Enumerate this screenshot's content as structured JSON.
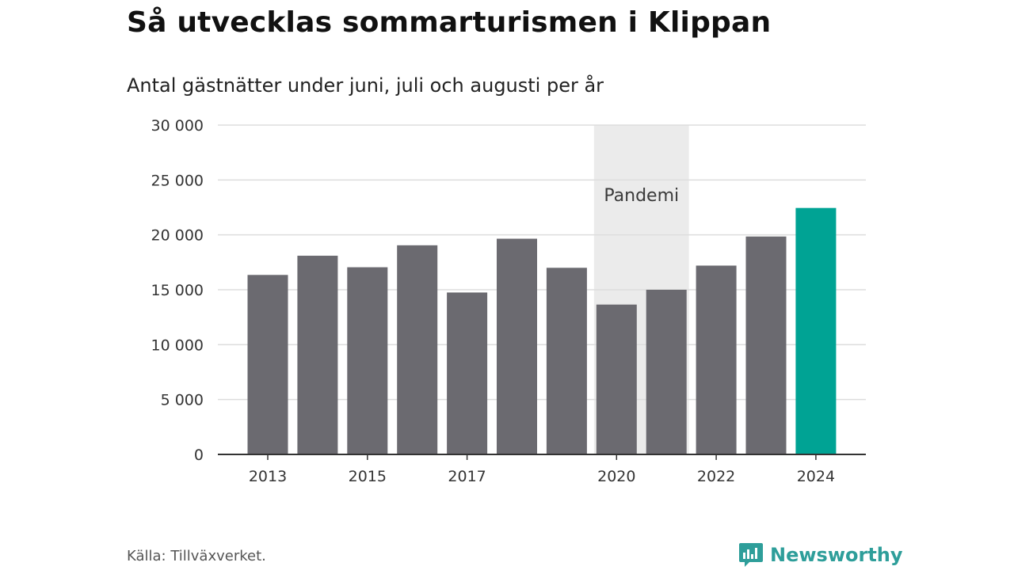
{
  "header": {
    "title": "Så utvecklas sommarturismen i Klippan",
    "subtitle": "Antal gästnätter under juni, juli och augusti per år"
  },
  "footer": {
    "source": "Källa: Tillväxverket.",
    "brand_name": "Newsworthy",
    "brand_icon": "newsworthy-logo-icon"
  },
  "colors": {
    "bar": "#6b6a70",
    "highlight": "#00a394",
    "band": "#ebebeb",
    "grid": "#dddddd",
    "axis": "#333333",
    "brand": "#2e9e9a"
  },
  "chart_data": {
    "type": "bar",
    "categories": [
      "2013",
      "2014",
      "2015",
      "2016",
      "2017",
      "2018",
      "2019",
      "2020",
      "2021",
      "2022",
      "2023",
      "2024"
    ],
    "values": [
      16350,
      18100,
      17050,
      19050,
      14750,
      19650,
      17000,
      13650,
      15000,
      17200,
      19850,
      22450
    ],
    "highlight_category": "2024",
    "x_tick_labels": [
      "2013",
      "2015",
      "2017",
      "2020",
      "2022",
      "2024"
    ],
    "y_ticks": [
      0,
      5000,
      10000,
      15000,
      20000,
      25000,
      30000
    ],
    "y_tick_labels": [
      "0",
      "5 000",
      "10 000",
      "15 000",
      "20 000",
      "25 000",
      "30 000"
    ],
    "ylim": [
      0,
      30000
    ],
    "grid": true,
    "legend": "none",
    "annotations": [
      {
        "type": "band",
        "from": "2020",
        "to": "2021",
        "label": "Pandemi"
      }
    ]
  }
}
